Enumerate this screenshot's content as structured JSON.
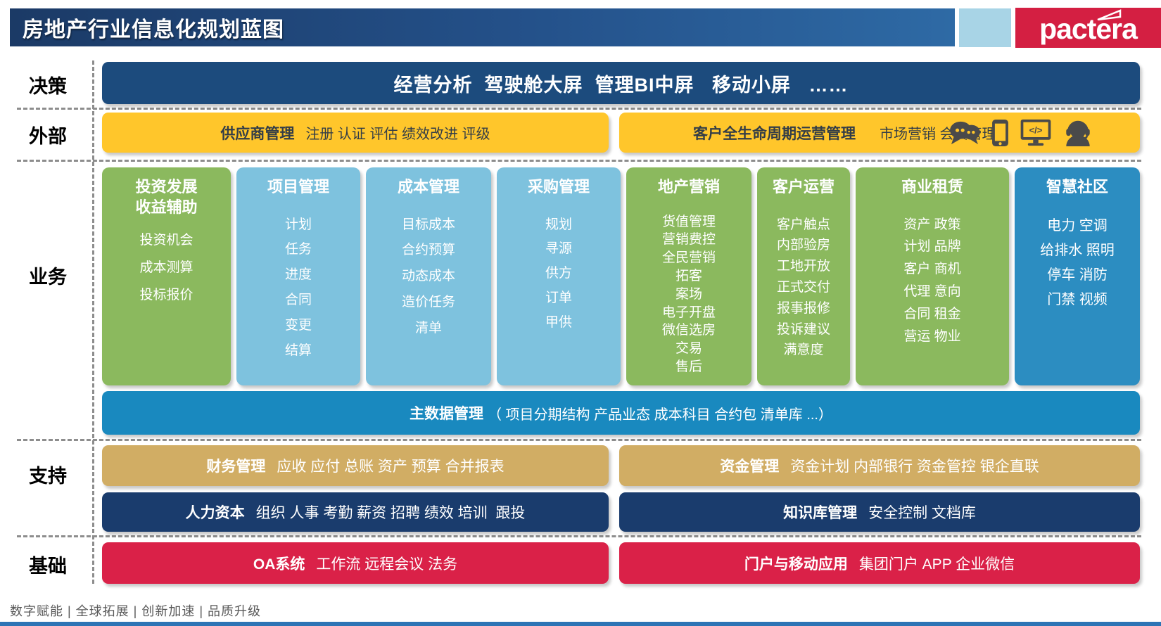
{
  "header": {
    "title": "房地产行业信息化规划蓝图",
    "logo_text": "pactera"
  },
  "rows": {
    "decision": {
      "label": "决策",
      "text": "经营分析  驾驶舱大屏  管理BI中屏   移动小屏   ……"
    },
    "external": {
      "label": "外部",
      "left": {
        "title": "供应商管理",
        "items": "注册 认证 评估 绩效改进 评级"
      },
      "right": {
        "title": "客户全生命周期运营管理",
        "items": "市场营销 会员管理",
        "icons": [
          "chat",
          "smartphone",
          "monitor-code",
          "support-agent"
        ]
      }
    },
    "business": {
      "label": "业务",
      "columns": [
        {
          "title": "投资发展\n收益辅助",
          "color": "green",
          "items": [
            "投资机会",
            "成本测算",
            "投标报价"
          ]
        },
        {
          "title": "项目管理",
          "color": "lightblue",
          "items": [
            "计划",
            "任务",
            "进度",
            "合同",
            "变更",
            "结算"
          ]
        },
        {
          "title": "成本管理",
          "color": "lightblue",
          "items": [
            "目标成本",
            "合约预算",
            "动态成本",
            "造价任务",
            "清单"
          ]
        },
        {
          "title": "采购管理",
          "color": "lightblue",
          "items": [
            "规划",
            "寻源",
            "供方",
            "订单",
            "甲供"
          ]
        },
        {
          "title": "地产营销",
          "color": "green",
          "items": [
            "货值管理",
            "营销费控",
            "全民营销",
            "拓客",
            "案场",
            "电子开盘",
            "微信选房",
            "交易",
            "售后"
          ]
        },
        {
          "title": "客户运营",
          "color": "green",
          "items": [
            "客户触点",
            "内部验房",
            "工地开放",
            "正式交付",
            "报事报修",
            "投诉建议",
            "满意度"
          ]
        },
        {
          "title": "商业租赁",
          "color": "green",
          "items": [
            "资产 政策",
            "计划 品牌",
            "客户 商机",
            "代理 意向",
            "合同 租金",
            "营运 物业"
          ]
        },
        {
          "title": "智慧社区",
          "color": "blue",
          "items": [
            "电力 空调",
            "给排水 照明",
            "停车 消防",
            "门禁 视频"
          ]
        }
      ],
      "master_data": {
        "title": "主数据管理",
        "detail": "（ 项目分期结构 产品业态 成本科目 合约包 清单库 ...）"
      }
    },
    "support": {
      "label": "支持",
      "finance": {
        "title": "财务管理",
        "items": "应收 应付 总账 资产 预算 合并报表"
      },
      "treasury": {
        "title": "资金管理",
        "items": "资金计划 内部银行 资金管控 银企直联"
      },
      "hr": {
        "title": "人力资本",
        "items": "组织 人事 考勤 薪资 招聘 绩效 培训  跟投"
      },
      "knowledge": {
        "title": "知识库管理",
        "items": "安全控制 文档库"
      }
    },
    "foundation": {
      "label": "基础",
      "oa": {
        "title": "OA系统",
        "items": "工作流 远程会议 法务"
      },
      "portal": {
        "title": "门户与移动应用",
        "items": "集团门户 APP 企业微信"
      }
    }
  },
  "footer": {
    "slogan": "数字赋能 | 全球拓展 | 创新加速 | 品质升级"
  },
  "colors": {
    "header_navy_left": "#1b3a66",
    "header_navy_right": "#2e6aa5",
    "decision_navy": "#1c4b7d",
    "external_yellow": "#ffc62b",
    "business_green": "#8bb95e",
    "business_lightblue": "#7ec2de",
    "community_blue": "#2c8dc1",
    "master_data_blue": "#1989bf",
    "support_tan": "#d1ad64",
    "support_navy": "#1a3c6d",
    "foundation_red": "#da2148",
    "logo_red": "#d41f42",
    "logo_accent_blue": "#a8d4e6",
    "footer_gray": "#595959"
  }
}
